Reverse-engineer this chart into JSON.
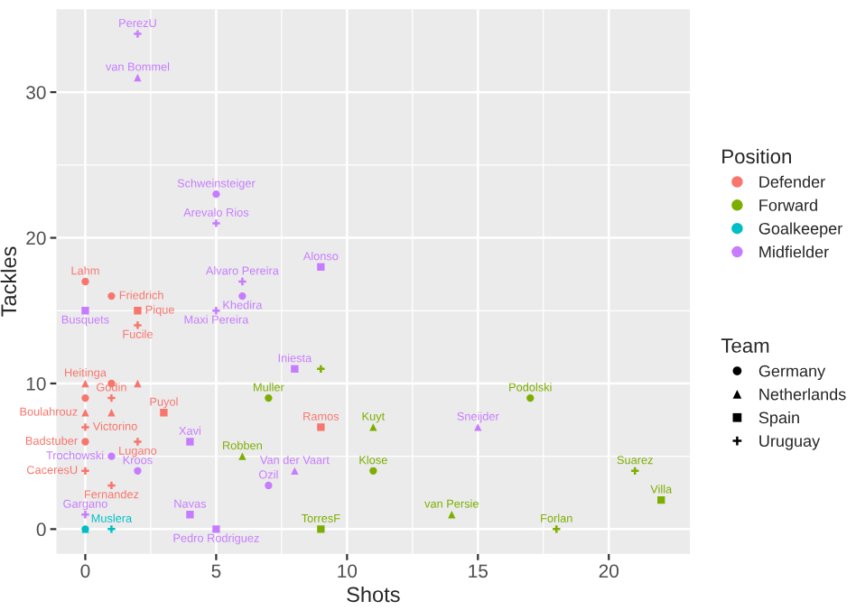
{
  "chart_data": {
    "type": "scatter",
    "xlabel": "Shots",
    "ylabel": "Tackles",
    "xlim": [
      -1.1,
      23.1
    ],
    "ylim": [
      -1.7,
      35.7
    ],
    "xticks": [
      0,
      5,
      10,
      15,
      20
    ],
    "yticks": [
      0,
      10,
      20,
      30
    ],
    "grid": true,
    "legend": "right",
    "legend_title": "Position",
    "annotations": [
      "Team",
      "Germany",
      "Netherlands",
      "Spain",
      "Uruguay"
    ],
    "series": [
      {
        "name": "Defender",
        "color": "#F8766D",
        "marker": "circle",
        "x": [
          0,
          1,
          1,
          0,
          0
        ],
        "values": [
          17,
          16,
          10,
          9,
          6
        ],
        "value_labels": [
          "Lahm",
          "Friedrich",
          null,
          null,
          "Badstuber"
        ]
      },
      {
        "color": "#F8766D",
        "marker": "triangle",
        "x": [
          0,
          2,
          0,
          1
        ],
        "values": [
          10,
          10,
          8,
          8
        ],
        "value_labels": [
          "Heitinga",
          null,
          "Boulahrouz",
          null
        ]
      },
      {
        "color": "#F8766D",
        "marker": "square",
        "x": [
          2,
          3,
          9
        ],
        "values": [
          15,
          8,
          7
        ],
        "value_labels": [
          "Pique",
          "Puyol",
          "Ramos"
        ]
      },
      {
        "color": "#F8766D",
        "marker": "cross",
        "x": [
          2,
          1,
          0,
          2,
          0,
          1
        ],
        "values": [
          14,
          9,
          7,
          6,
          4,
          3
        ],
        "value_labels": [
          "Fucile",
          "Godin",
          "Victorino",
          "Lugano",
          "CaceresU",
          "Fernandez"
        ]
      },
      {
        "name": "Forward",
        "color": "#7CAE00",
        "marker": "circle",
        "x": [
          7,
          17,
          11
        ],
        "values": [
          9,
          9,
          4
        ],
        "value_labels": [
          "Muller",
          "Podolski",
          "Klose"
        ]
      },
      {
        "color": "#7CAE00",
        "marker": "triangle",
        "x": [
          11,
          6,
          14
        ],
        "values": [
          7,
          5,
          1
        ],
        "value_labels": [
          "Kuyt",
          "Robben",
          "van Persie"
        ]
      },
      {
        "color": "#7CAE00",
        "marker": "square",
        "x": [
          9,
          22
        ],
        "values": [
          0,
          2
        ],
        "value_labels": [
          "TorresF",
          "Villa"
        ]
      },
      {
        "color": "#7CAE00",
        "marker": "cross",
        "x": [
          9,
          21,
          18
        ],
        "values": [
          11,
          4,
          0
        ],
        "value_labels": [
          null,
          "Suarez",
          "Forlan"
        ]
      },
      {
        "name": "Goalkeeper",
        "color": "#00BFC4",
        "marker": "circle",
        "x": [
          0
        ],
        "values": [
          0
        ]
      },
      {
        "color": "#00BFC4",
        "marker": "triangle",
        "x": [
          0
        ],
        "values": [
          0
        ]
      },
      {
        "color": "#00BFC4",
        "marker": "cross",
        "x": [
          1
        ],
        "values": [
          0
        ],
        "value_labels": [
          "Muslera"
        ]
      },
      {
        "name": "Midfielder",
        "color": "#C77CFF",
        "marker": "circle",
        "x": [
          5,
          6,
          1,
          2,
          7
        ],
        "values": [
          23,
          16,
          5,
          4,
          3
        ],
        "value_labels": [
          "Schweinsteiger",
          "Khedira",
          "Trochowski",
          "Kroos",
          "Ozil"
        ]
      },
      {
        "color": "#C77CFF",
        "marker": "triangle",
        "x": [
          2,
          15,
          8
        ],
        "values": [
          31,
          7,
          4
        ],
        "value_labels": [
          "van Bommel",
          "Sneijder",
          "Van der Vaart"
        ]
      },
      {
        "color": "#C77CFF",
        "marker": "square",
        "x": [
          9,
          0,
          8,
          4,
          4,
          5
        ],
        "values": [
          18,
          15,
          11,
          6,
          1,
          0
        ],
        "value_labels": [
          "Alonso",
          "Busquets",
          "Iniesta",
          "Xavi",
          "Navas",
          "Pedro Rodriguez"
        ]
      },
      {
        "color": "#C77CFF",
        "marker": "cross",
        "x": [
          2,
          5,
          6,
          5,
          0
        ],
        "values": [
          34,
          21,
          17,
          15,
          1
        ],
        "value_labels": [
          "PerezU",
          "Arevalo Rios",
          "Alvaro Pereira",
          "Maxi Pereira",
          "Gargano"
        ]
      }
    ]
  }
}
